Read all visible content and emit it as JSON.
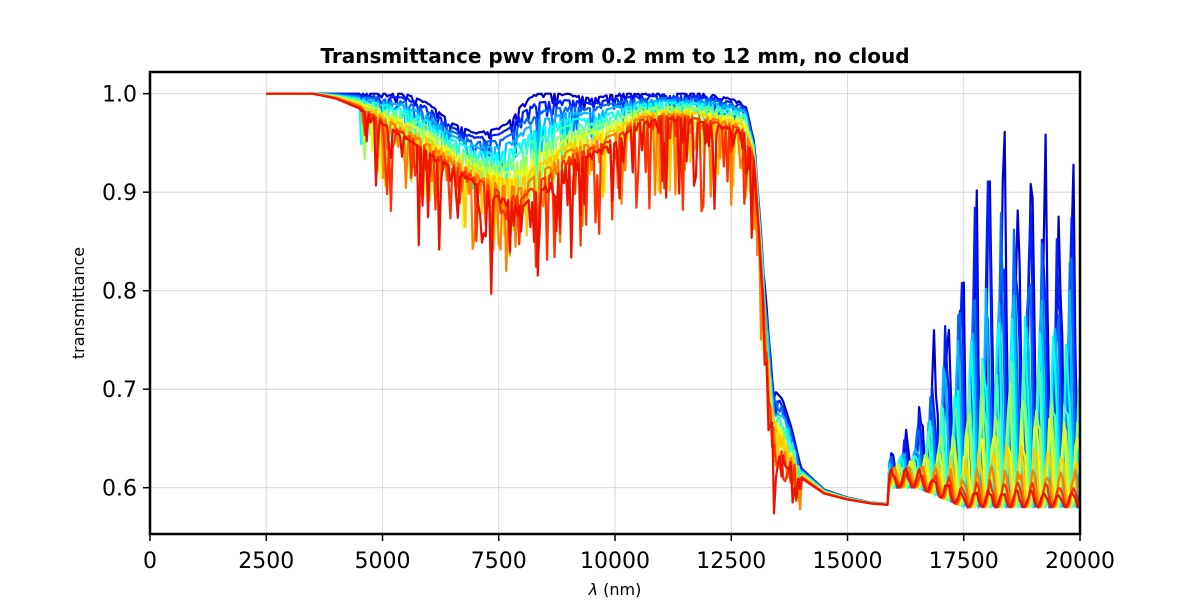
{
  "chart_data": {
    "type": "line",
    "title": "Transmittance pwv from 0.2 mm to 12 mm, no cloud",
    "xlabel_symbol": "λ",
    "xlabel_unit": " (nm)",
    "ylabel": "transmittance",
    "xlim": [
      0,
      20000
    ],
    "ylim": [
      0.553,
      1.022
    ],
    "x_ticks": [
      0,
      2500,
      5000,
      7500,
      10000,
      12500,
      15000,
      17500,
      20000
    ],
    "y_ticks": [
      0.6,
      0.7,
      0.8,
      0.9,
      1.0
    ],
    "y_tick_labels": [
      "0.6",
      "0.7",
      "0.8",
      "0.9",
      "1.0"
    ],
    "grid": true,
    "legend": "none",
    "colormap": "jet",
    "series_count": 12,
    "pwv_range_mm": [
      0.2,
      12
    ],
    "envelope": {
      "x": [
        2500,
        3000,
        3500,
        4000,
        4500,
        5000,
        5500,
        6000,
        6500,
        7000,
        7500,
        7800,
        8000,
        8300,
        8600,
        9000,
        9500,
        10000,
        10500,
        11000,
        11500,
        12000,
        12500,
        12800,
        13000,
        13200,
        13400,
        13600,
        13800,
        14000,
        14500,
        15000,
        15500,
        16000,
        16500,
        17000,
        17500,
        18000,
        18500,
        19000,
        19500,
        20000
      ],
      "top": [
        1.0,
        1.0,
        1.0,
        1.0,
        1.0,
        1.0,
        1.0,
        0.99,
        0.97,
        0.96,
        0.965,
        0.975,
        0.99,
        1.0,
        1.0,
        1.0,
        0.995,
        1.0,
        1.0,
        1.0,
        1.0,
        1.0,
        0.995,
        0.99,
        0.95,
        0.82,
        0.7,
        0.69,
        0.66,
        0.62,
        0.598,
        0.59,
        0.585,
        0.583,
        0.585,
        0.585,
        0.585,
        0.585,
        0.585,
        0.585,
        0.585,
        0.585
      ],
      "bottom": [
        1.0,
        1.0,
        1.0,
        0.995,
        0.985,
        0.97,
        0.955,
        0.94,
        0.925,
        0.91,
        0.895,
        0.89,
        0.885,
        0.9,
        0.91,
        0.93,
        0.94,
        0.95,
        0.97,
        0.975,
        0.975,
        0.97,
        0.965,
        0.96,
        0.93,
        0.78,
        0.66,
        0.645,
        0.63,
        0.61,
        0.594,
        0.588,
        0.584,
        0.582,
        0.58,
        0.58,
        0.58,
        0.58,
        0.58,
        0.58,
        0.58,
        0.58
      ]
    },
    "high_band_peak": {
      "x": [
        16000,
        16500,
        17000,
        17500,
        18000,
        18500,
        19000,
        19500,
        20000
      ],
      "max_pwv_min": [
        0.6,
        0.6,
        0.59,
        0.58,
        0.58,
        0.58,
        0.58,
        0.58,
        0.58
      ],
      "min_pwv_max": [
        0.62,
        0.66,
        0.78,
        0.88,
        0.96,
        0.98,
        0.97,
        0.94,
        0.95
      ]
    }
  }
}
